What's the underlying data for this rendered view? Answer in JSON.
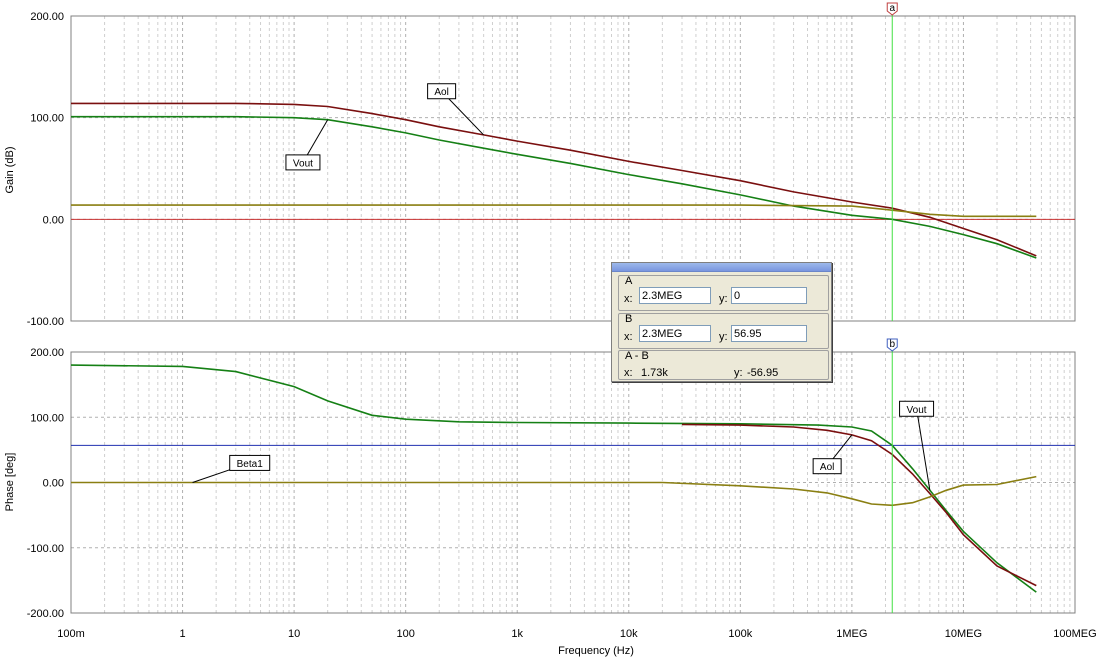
{
  "colors": {
    "aol": "#7a0f0f",
    "vout": "#158015",
    "beta": "#8a7f12",
    "zero_line": "#c83232",
    "cursor_line": "#2030b0",
    "marker": "#40e040"
  },
  "chart_data": [
    {
      "type": "line",
      "ylabel": "Gain (dB)",
      "xscale": "log",
      "xlim": [
        0.1,
        100000000
      ],
      "ylim": [
        -100,
        200
      ],
      "yticks": [
        "200.00",
        "100.00",
        "0.00",
        "-100.00"
      ],
      "grid": true,
      "series": [
        {
          "name": "Aol",
          "x": [
            0.1,
            1,
            3,
            10,
            20,
            50,
            100,
            200,
            500,
            1000,
            3000,
            10000,
            30000,
            100000,
            300000,
            1000000,
            2300000,
            5000000,
            10000000,
            20000000,
            45000000
          ],
          "y": [
            114,
            114,
            114,
            113,
            111,
            104,
            98,
            91,
            83,
            77,
            68,
            57,
            48,
            38,
            27,
            17,
            11,
            2,
            -9,
            -20,
            -36
          ]
        },
        {
          "name": "Vout",
          "x": [
            0.1,
            1,
            3,
            10,
            20,
            50,
            100,
            200,
            500,
            1000,
            3000,
            10000,
            30000,
            100000,
            300000,
            1000000,
            2300000,
            5000000,
            10000000,
            20000000,
            45000000
          ],
          "y": [
            101,
            101,
            101,
            100,
            98,
            91,
            85,
            78,
            70,
            64,
            55,
            44,
            35,
            24,
            13,
            4,
            0,
            -7,
            -15,
            -24,
            -38
          ]
        },
        {
          "name": "",
          "x": [
            0.1,
            1,
            10,
            100,
            1000,
            10000,
            100000,
            1000000,
            2300000,
            5000000,
            10000000,
            20000000,
            45000000
          ],
          "y": [
            14,
            14,
            14,
            14,
            14,
            14,
            14,
            13,
            9,
            5,
            3,
            3,
            3
          ]
        }
      ],
      "labels": [
        {
          "text": "Aol",
          "x": 210,
          "y": 126
        },
        {
          "text": "Vout",
          "x": 12,
          "y": 56
        }
      ]
    },
    {
      "type": "line",
      "xlabel": "Frequency (Hz)",
      "ylabel": "Phase [deg]",
      "xscale": "log",
      "xlim": [
        0.1,
        100000000
      ],
      "ylim": [
        -200,
        200
      ],
      "xticks": [
        "100m",
        "1",
        "10",
        "100",
        "1k",
        "10k",
        "100k",
        "1MEG",
        "10MEG",
        "100MEG"
      ],
      "yticks": [
        "200.00",
        "100.00",
        "0.00",
        "-100.00",
        "-200.00"
      ],
      "grid": true,
      "series": [
        {
          "name": "Vout",
          "x": [
            0.1,
            1,
            3,
            10,
            20,
            50,
            100,
            300,
            1000,
            10000,
            100000,
            500000,
            1000000,
            1500000,
            2300000,
            3500000,
            5000000,
            7000000,
            10000000,
            20000000,
            45000000
          ],
          "y": [
            180,
            178,
            170,
            147,
            125,
            103,
            97,
            93,
            92,
            91,
            90,
            88,
            85,
            79,
            57,
            21,
            -12,
            -43,
            -75,
            -123,
            -168
          ]
        },
        {
          "name": "Aol",
          "x": [
            30000,
            100000,
            300000,
            600000,
            1000000,
            1500000,
            2300000,
            3500000,
            5000000,
            7000000,
            10000000,
            20000000,
            45000000
          ],
          "y": [
            89,
            88,
            85,
            80,
            73,
            64,
            43,
            13,
            -17,
            -46,
            -80,
            -128,
            -158
          ]
        },
        {
          "name": "Beta1",
          "x": [
            0.1,
            1,
            10,
            100,
            1000,
            20000,
            100000,
            300000,
            600000,
            1000000,
            1500000,
            2300000,
            3500000,
            5000000,
            7000000,
            10000000,
            20000000,
            45000000
          ],
          "y": [
            0,
            0,
            0,
            0,
            0,
            0,
            -5,
            -10,
            -16,
            -25,
            -33,
            -35,
            -31,
            -22,
            -12,
            -4,
            -3,
            9
          ]
        }
      ],
      "labels": [
        {
          "text": "Vout",
          "x": 3800000,
          "y": 113
        },
        {
          "text": "Aol",
          "x": 600000,
          "y": 25
        },
        {
          "text": "Beta1",
          "x": 4,
          "y": 30
        }
      ]
    }
  ],
  "markers": {
    "a_label": "a",
    "b_label": "b",
    "a_freq": 2300000,
    "b_freq": 2300000,
    "b_phase": 56.95
  },
  "cursor_panel": {
    "a": {
      "title": "A",
      "x": "2.3MEG",
      "y": "0"
    },
    "b": {
      "title": "B",
      "x": "2.3MEG",
      "y": "56.95"
    },
    "diff": {
      "title": "A - B",
      "x": "1.73k",
      "y": "-56.95"
    },
    "x_label": "x:",
    "y_label": "y:"
  }
}
